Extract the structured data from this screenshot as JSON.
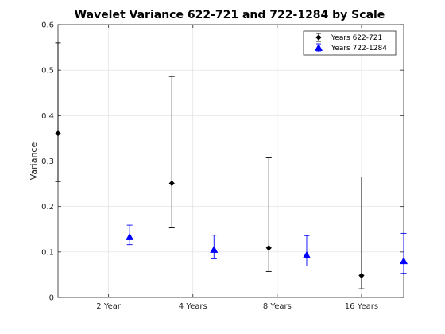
{
  "chart_data": {
    "type": "scatter",
    "title": "Wavelet Variance 622-721 and 722-1284 by Scale",
    "xlabel": "",
    "ylabel": "Variance",
    "x_ticks": [
      {
        "x": 2,
        "label": "2 Year"
      },
      {
        "x": 4,
        "label": "4 Years"
      },
      {
        "x": 6,
        "label": "8 Years"
      },
      {
        "x": 8,
        "label": "16 Years"
      }
    ],
    "xlim": [
      0.8,
      9.0
    ],
    "ylim": [
      0,
      0.6
    ],
    "yticks": [
      0,
      0.1,
      0.2,
      0.3,
      0.4,
      0.5,
      0.6
    ],
    "grid": true,
    "legend_position": "top-right",
    "series": [
      {
        "name": "Years 622-721",
        "color": "#000000",
        "marker": "diamond",
        "points": [
          {
            "x": 0.8,
            "y": 0.361,
            "lower": 0.255,
            "upper": 0.56
          },
          {
            "x": 3.5,
            "y": 0.251,
            "lower": 0.153,
            "upper": 0.486
          },
          {
            "x": 5.8,
            "y": 0.109,
            "lower": 0.057,
            "upper": 0.307
          },
          {
            "x": 8.0,
            "y": 0.048,
            "lower": 0.019,
            "upper": 0.265
          }
        ]
      },
      {
        "name": "Years 722-1284",
        "color": "#0000ff",
        "marker": "triangle",
        "points": [
          {
            "x": 2.5,
            "y": 0.133,
            "lower": 0.116,
            "upper": 0.159
          },
          {
            "x": 4.5,
            "y": 0.105,
            "lower": 0.085,
            "upper": 0.137
          },
          {
            "x": 6.7,
            "y": 0.093,
            "lower": 0.069,
            "upper": 0.136
          },
          {
            "x": 9.0,
            "y": 0.08,
            "lower": 0.053,
            "upper": 0.141
          }
        ]
      }
    ]
  }
}
